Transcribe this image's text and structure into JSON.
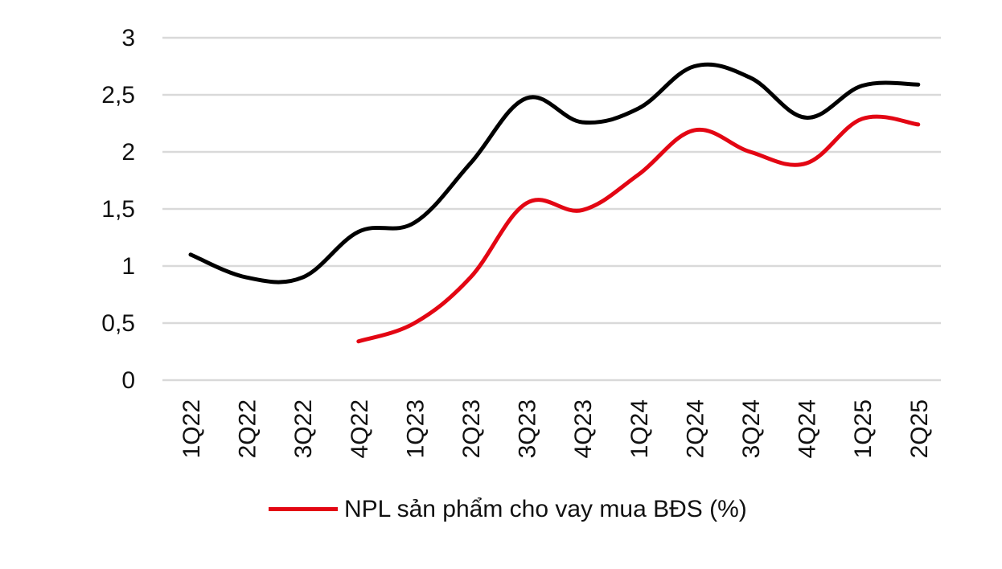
{
  "chart_data": {
    "type": "line",
    "title": "",
    "xlabel": "",
    "ylabel": "",
    "categories": [
      "1Q22",
      "2Q22",
      "3Q22",
      "4Q22",
      "1Q23",
      "2Q23",
      "3Q23",
      "4Q23",
      "1Q24",
      "2Q24",
      "3Q24",
      "4Q24",
      "1Q25",
      "2Q25"
    ],
    "y_tick_labels": [
      "0",
      "0,5",
      "1",
      "1,5",
      "2",
      "2,5",
      "3"
    ],
    "ylim": [
      0,
      3
    ],
    "grid": true,
    "legend_position": "bottom",
    "series": [
      {
        "name": "",
        "color": "#000000",
        "values": [
          1.1,
          0.9,
          0.9,
          1.3,
          1.38,
          1.9,
          2.47,
          2.26,
          2.38,
          2.75,
          2.65,
          2.3,
          2.58,
          2.59
        ]
      },
      {
        "name": "NPL sản phẩm cho vay mua BĐS (%)",
        "color": "#e30613",
        "values": [
          null,
          null,
          null,
          0.34,
          0.5,
          0.9,
          1.55,
          1.49,
          1.8,
          2.19,
          2.0,
          1.9,
          2.29,
          2.24
        ]
      }
    ]
  }
}
